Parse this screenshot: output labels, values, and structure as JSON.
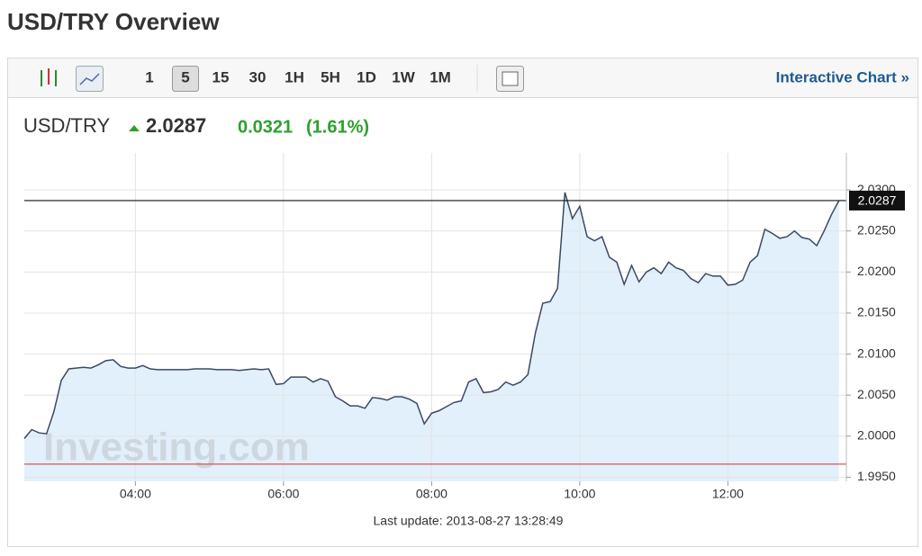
{
  "header": {
    "title": "USD/TRY Overview"
  },
  "toolbar": {
    "intervals": [
      "1",
      "5",
      "15",
      "30",
      "1H",
      "5H",
      "1D",
      "1W",
      "1M"
    ],
    "link": "Interactive Chart »"
  },
  "quote": {
    "symbol": "USD/TRY",
    "price": "2.0287",
    "change": "0.0321",
    "change_pct": "(1.61%)"
  },
  "chart_data": {
    "type": "line",
    "color": "#3d4863",
    "area_color": "#e1f0fb",
    "grid": true,
    "watermark": "Investing.com",
    "x": [
      "02:30",
      "02:36",
      "02:42",
      "02:48",
      "02:54",
      "03:00",
      "03:06",
      "03:12",
      "03:18",
      "03:24",
      "03:30",
      "03:36",
      "03:42",
      "03:48",
      "03:54",
      "04:00",
      "04:06",
      "04:12",
      "04:18",
      "04:24",
      "04:30",
      "04:36",
      "04:42",
      "04:48",
      "04:54",
      "05:00",
      "05:06",
      "05:12",
      "05:18",
      "05:24",
      "05:30",
      "05:36",
      "05:42",
      "05:48",
      "05:54",
      "06:00",
      "06:06",
      "06:12",
      "06:18",
      "06:24",
      "06:30",
      "06:36",
      "06:42",
      "06:48",
      "06:54",
      "07:00",
      "07:06",
      "07:12",
      "07:18",
      "07:24",
      "07:30",
      "07:36",
      "07:42",
      "07:48",
      "07:54",
      "08:00",
      "08:06",
      "08:12",
      "08:18",
      "08:24",
      "08:30",
      "08:36",
      "08:42",
      "08:48",
      "08:54",
      "09:00",
      "09:06",
      "09:12",
      "09:18",
      "09:24",
      "09:30",
      "09:36",
      "09:42",
      "09:48",
      "09:54",
      "10:00",
      "10:06",
      "10:12",
      "10:18",
      "10:24",
      "10:30",
      "10:36",
      "10:42",
      "10:48",
      "10:54",
      "11:00",
      "11:06",
      "11:12",
      "11:18",
      "11:24",
      "11:30",
      "11:36",
      "11:42",
      "11:48",
      "11:54",
      "12:00",
      "12:06",
      "12:12",
      "12:18",
      "12:24",
      "12:30",
      "12:36",
      "12:42",
      "12:48",
      "12:54",
      "13:00",
      "13:06",
      "13:12",
      "13:18",
      "13:24",
      "13:30"
    ],
    "values": [
      1.9997,
      2.0008,
      2.0004,
      2.0003,
      2.003,
      2.0068,
      2.0082,
      2.0083,
      2.0084,
      2.0083,
      2.0087,
      2.0092,
      2.0093,
      2.0085,
      2.0083,
      2.0083,
      2.0086,
      2.0082,
      2.0081,
      2.0081,
      2.0081,
      2.0081,
      2.0081,
      2.0082,
      2.0082,
      2.0082,
      2.0081,
      2.0081,
      2.0081,
      2.008,
      2.0081,
      2.0082,
      2.0081,
      2.0082,
      2.0063,
      2.0064,
      2.0072,
      2.0072,
      2.0072,
      2.0066,
      2.007,
      2.0067,
      2.0048,
      2.0043,
      2.0037,
      2.0037,
      2.0034,
      2.0047,
      2.0046,
      2.0044,
      2.0048,
      2.0048,
      2.0045,
      2.004,
      2.0015,
      2.0028,
      2.0031,
      2.0036,
      2.0041,
      2.0043,
      2.0066,
      2.007,
      2.0053,
      2.0054,
      2.0057,
      2.0066,
      2.0062,
      2.0066,
      2.0075,
      2.0125,
      2.0162,
      2.0164,
      2.018,
      2.0297,
      2.0265,
      2.028,
      2.0243,
      2.0238,
      2.0243,
      2.0218,
      2.0212,
      2.0185,
      2.0208,
      2.0188,
      2.02,
      2.0205,
      2.0198,
      2.0212,
      2.0205,
      2.0202,
      2.0192,
      2.0187,
      2.0198,
      2.0195,
      2.0195,
      2.0184,
      2.0185,
      2.019,
      2.0212,
      2.022,
      2.0252,
      2.0247,
      2.0241,
      2.0243,
      2.025,
      2.0242,
      2.024,
      2.0232,
      2.025,
      2.027,
      2.0287
    ],
    "last_price": 2.0287,
    "reference_line": {
      "value": 1.9966,
      "color": "#e05050"
    },
    "xlim": [
      "02:30",
      "13:36"
    ],
    "xticks": [
      "04:00",
      "06:00",
      "08:00",
      "10:00",
      "12:00"
    ],
    "ylim": [
      1.9945,
      2.0345
    ],
    "yticks": [
      {
        "value": 1.995,
        "label": "1.9950"
      },
      {
        "value": 2.0,
        "label": "2.0000"
      },
      {
        "value": 2.005,
        "label": "2.0050"
      },
      {
        "value": 2.01,
        "label": "2.0100"
      },
      {
        "value": 2.015,
        "label": "2.0150"
      },
      {
        "value": 2.02,
        "label": "2.0200"
      },
      {
        "value": 2.025,
        "label": "2.0250"
      },
      {
        "value": 2.03,
        "label": "2.0300"
      }
    ],
    "footer": "Last update: 2013-08-27 13:28:49"
  }
}
